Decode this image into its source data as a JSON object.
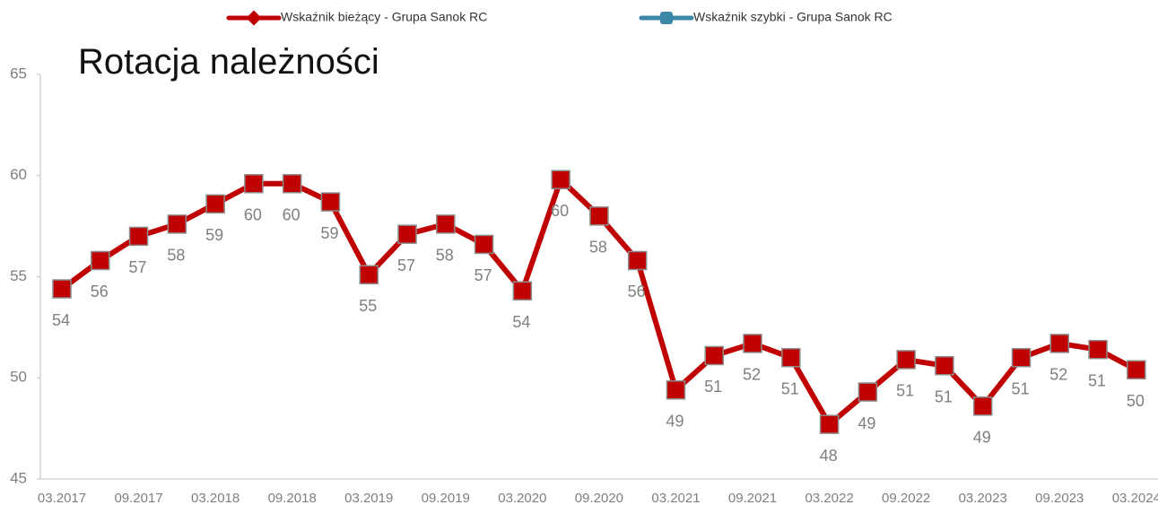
{
  "chart_data": {
    "type": "line",
    "title": "Rotacja należności",
    "categories": [
      "03.2017",
      null,
      "09.2017",
      null,
      "03.2018",
      null,
      "09.2018",
      null,
      "03.2019",
      null,
      "09.2019",
      null,
      "03.2020",
      null,
      "09.2020",
      null,
      "03.2021",
      null,
      "09.2021",
      null,
      "03.2022",
      null,
      "09.2022",
      null,
      "03.2023",
      null,
      "09.2023",
      null,
      "03.2024"
    ],
    "series": [
      {
        "name": "Wskaźnik bieżący - Grupa Sanok RC",
        "color": "#c00000",
        "values": [
          54.4,
          55.8,
          57.0,
          57.6,
          58.6,
          59.6,
          59.6,
          58.7,
          55.1,
          57.1,
          57.6,
          56.6,
          54.3,
          59.8,
          58.0,
          55.8,
          49.4,
          51.1,
          51.7,
          51.0,
          47.7,
          49.3,
          50.9,
          50.6,
          48.6,
          51.0,
          51.7,
          51.4,
          50.4
        ],
        "value_labels": [
          "54",
          "56",
          "57",
          "58",
          "59",
          "60",
          "60",
          "59",
          "55",
          "57",
          "58",
          "57",
          "54",
          "60",
          "58",
          "56",
          "49",
          "51",
          "52",
          "51",
          "48",
          "49",
          "51",
          "51",
          "49",
          "51",
          "52",
          "51",
          "50"
        ]
      },
      {
        "name": "Wskaźnik szybki - Grupa Sanok RC",
        "color": "#3a87a8",
        "values": [
          null,
          null,
          null,
          null,
          null,
          null,
          null,
          null,
          null,
          null,
          null,
          null,
          null,
          null,
          null,
          null,
          null,
          null,
          null,
          null,
          null,
          null,
          null,
          null,
          null,
          null,
          null,
          null,
          null
        ]
      }
    ],
    "ylim": [
      45,
      65
    ],
    "yticks": [
      45,
      50,
      55,
      60,
      65
    ],
    "grid": false
  }
}
